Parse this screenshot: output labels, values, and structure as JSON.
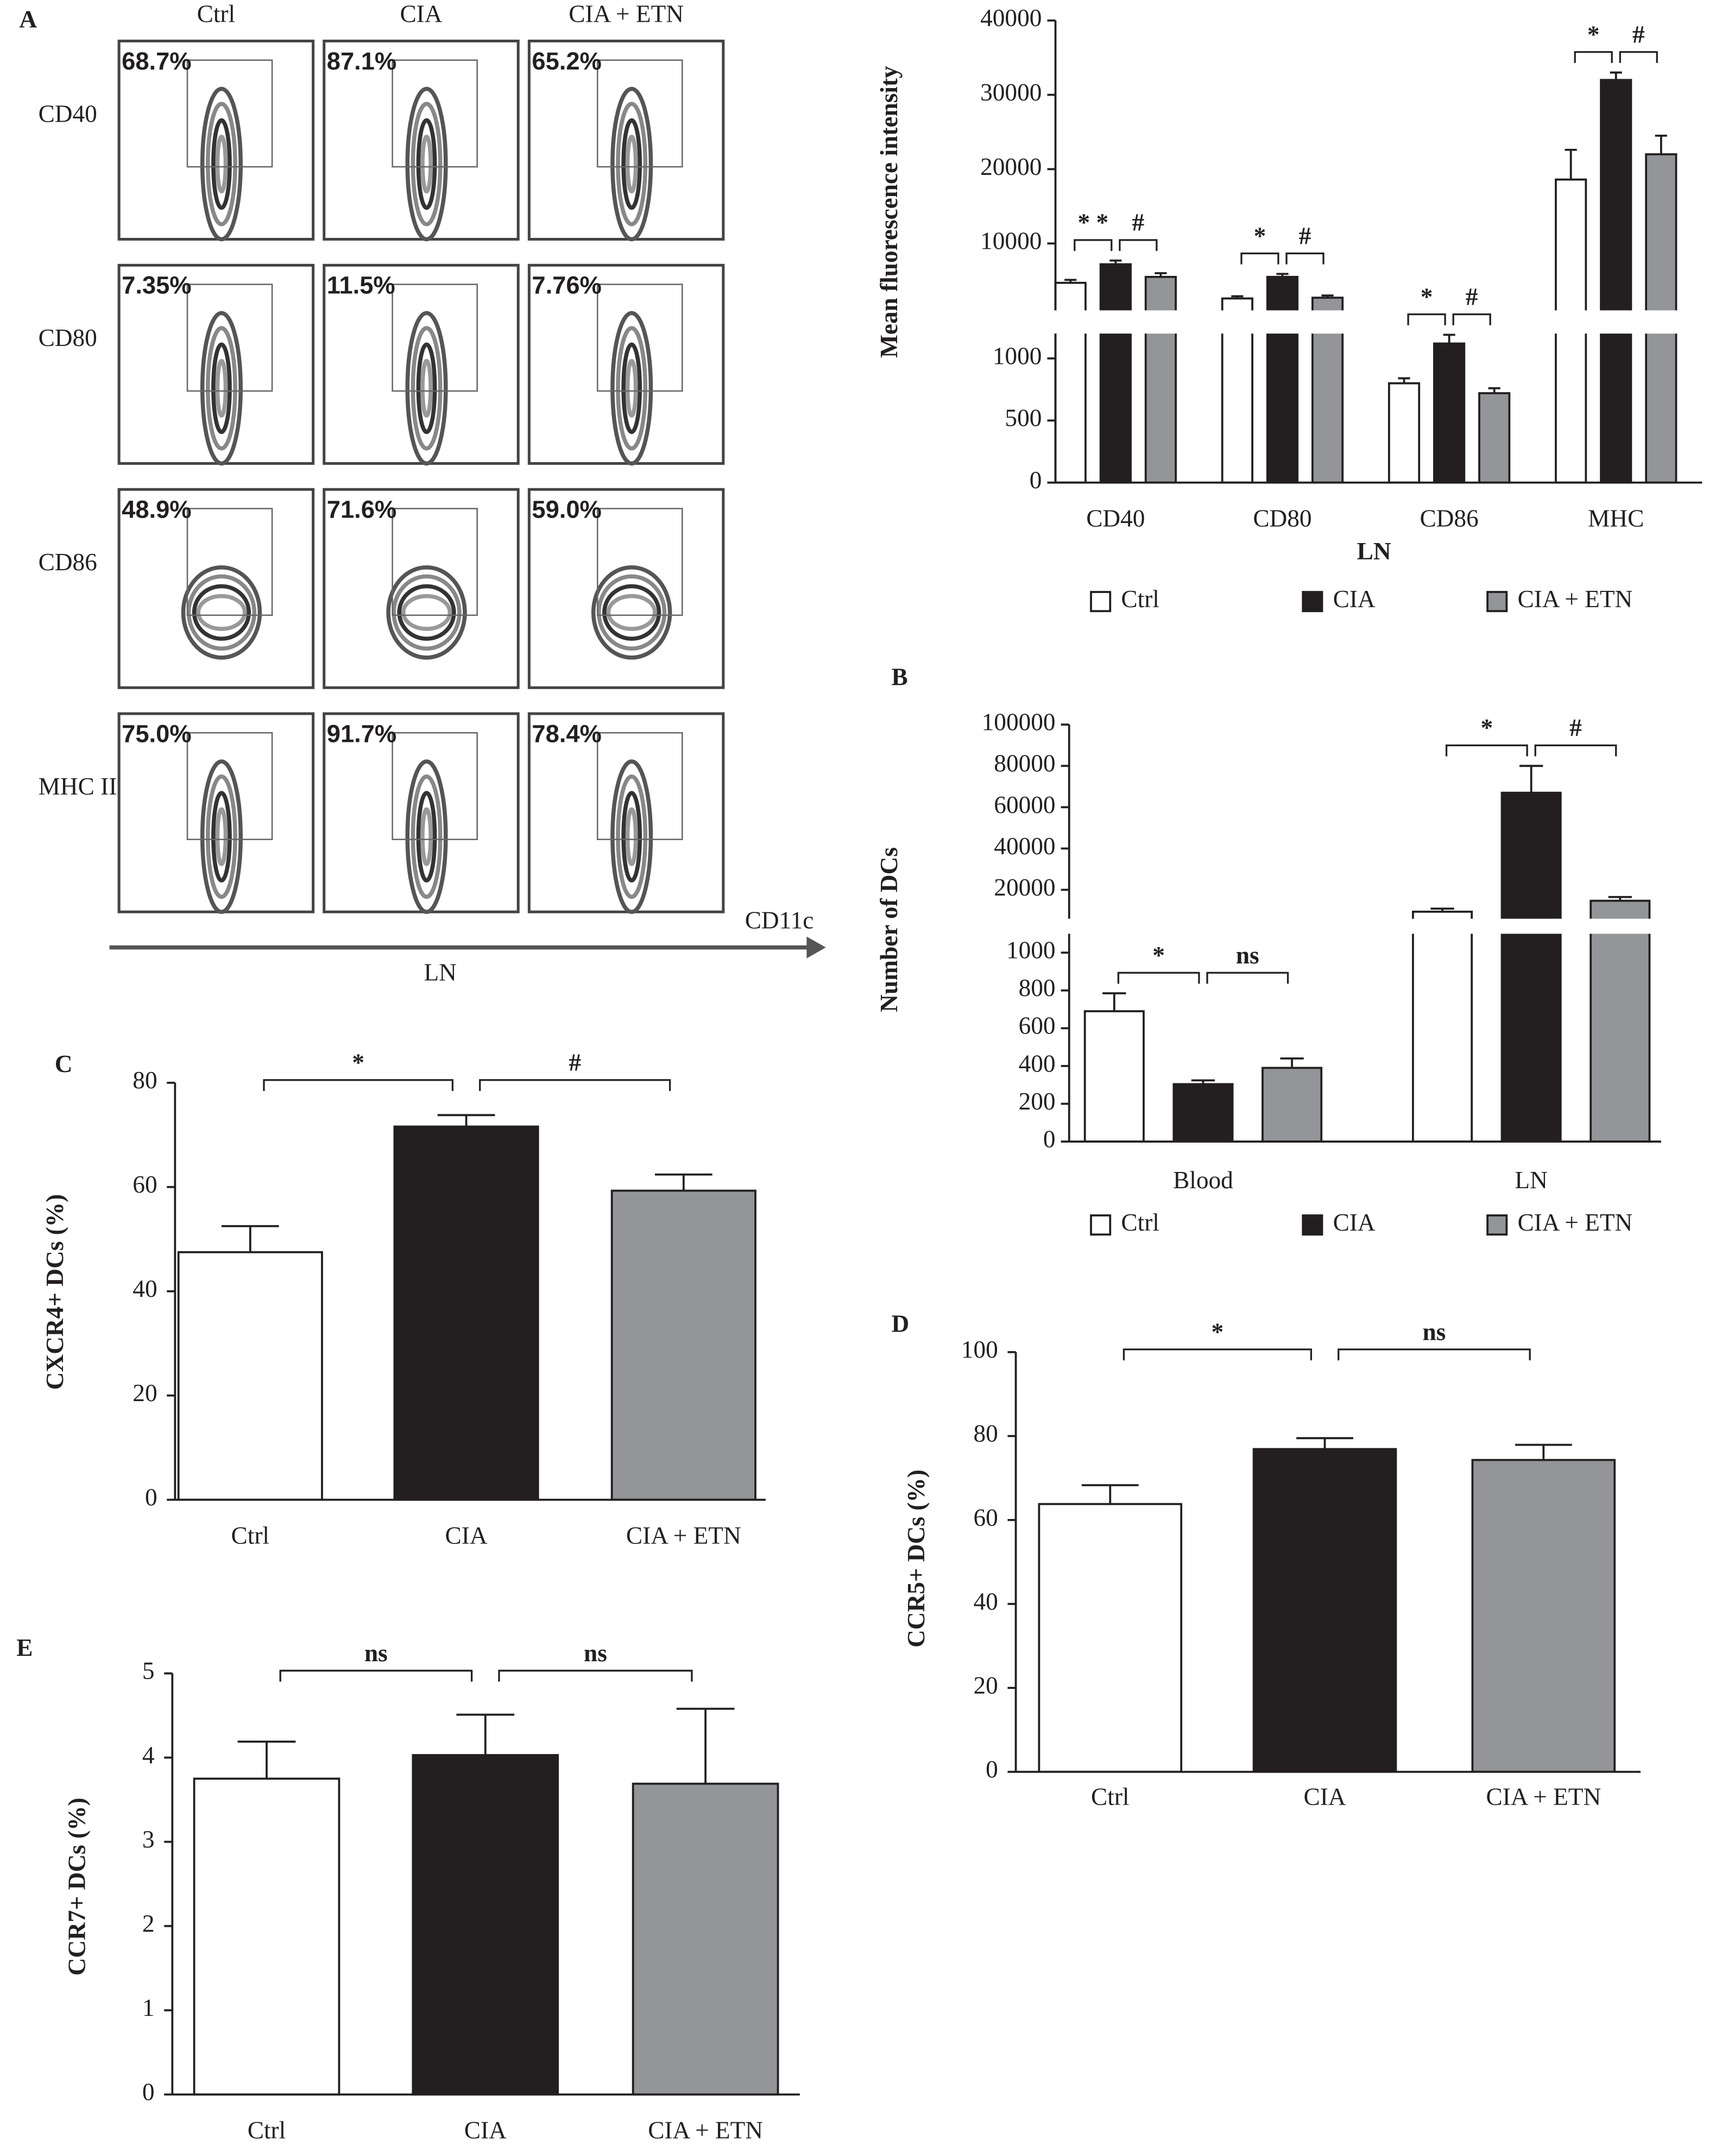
{
  "chart_data": [
    {
      "type": "flow-cytometry",
      "panel": "A",
      "columns": [
        "Ctrl",
        "CIA",
        "CIA + ETN"
      ],
      "rows": [
        "CD40",
        "CD80",
        "CD86",
        "MHC II"
      ],
      "values": [
        [
          68.7,
          87.1,
          65.2
        ],
        [
          7.35,
          11.5,
          7.76
        ],
        [
          48.9,
          71.6,
          59.0
        ],
        [
          75.0,
          91.7,
          78.4
        ]
      ],
      "value_labels": [
        [
          "68.7%",
          "87.1%",
          "65.2%"
        ],
        [
          "7.35%",
          "11.5%",
          "7.76%"
        ],
        [
          "48.9%",
          "71.6%",
          "59.0%"
        ],
        [
          "75.0%",
          "91.7%",
          "78.4%"
        ]
      ],
      "xlabel": "CD11c",
      "sublabel": "LN"
    },
    {
      "type": "bar",
      "ylabel": "Mean fluorescence intensity",
      "xlabel": "LN",
      "categories": [
        "CD40",
        "CD80",
        "CD86",
        "MHC"
      ],
      "series": [
        {
          "name": "Ctrl",
          "color": "#ffffff",
          "values": [
            4700,
            2600,
            800,
            18600
          ],
          "errors": [
            400,
            300,
            40,
            4000
          ]
        },
        {
          "name": "CIA",
          "color": "#231f20",
          "values": [
            7200,
            5500,
            1120,
            32000
          ],
          "errors": [
            500,
            400,
            70,
            1000
          ]
        },
        {
          "name": "CIA + ETN",
          "color": "#939598",
          "values": [
            5500,
            2700,
            720,
            22000
          ],
          "errors": [
            500,
            300,
            40,
            2500
          ]
        }
      ],
      "axis_segments": [
        {
          "ylim": [
            0,
            1200
          ],
          "yticks": [
            0,
            500,
            1000
          ]
        },
        {
          "ylim": [
            1000,
            40000
          ],
          "yticks": [
            10000,
            20000,
            30000,
            40000
          ]
        }
      ],
      "significance": [
        [
          "* *",
          "#"
        ],
        [
          "*",
          "#"
        ],
        [
          "*",
          "#"
        ],
        [
          "*",
          "#"
        ]
      ],
      "legend": "bottom"
    },
    {
      "type": "bar",
      "panel": "B",
      "ylabel": "Number of DCs",
      "categories": [
        "Blood",
        "LN"
      ],
      "series": [
        {
          "name": "Ctrl",
          "color": "#ffffff",
          "values": [
            690,
            9400
          ],
          "errors": [
            95,
            1500
          ]
        },
        {
          "name": "CIA",
          "color": "#231f20",
          "values": [
            304,
            67000
          ],
          "errors": [
            20,
            13000
          ]
        },
        {
          "name": "CIA + ETN",
          "color": "#939598",
          "values": [
            390,
            14700
          ],
          "errors": [
            50,
            1800
          ]
        }
      ],
      "axis_segments": [
        {
          "ylim": [
            0,
            1100
          ],
          "yticks": [
            0,
            200,
            400,
            600,
            800,
            1000
          ]
        },
        {
          "ylim": [
            6000,
            100000
          ],
          "yticks": [
            20000,
            40000,
            60000,
            80000,
            100000
          ]
        }
      ],
      "significance": [
        [
          "*",
          "ns"
        ],
        [
          "*",
          "#"
        ]
      ],
      "legend": "bottom"
    },
    {
      "type": "bar",
      "panel": "C",
      "ylabel": "CXCR4+ DCs (%)",
      "categories": [
        "Ctrl",
        "CIA",
        "CIA + ETN"
      ],
      "values": [
        47.5,
        71.6,
        59.3
      ],
      "errors": [
        5.0,
        2.2,
        3.1
      ],
      "colors": [
        "#ffffff",
        "#231f20",
        "#939598"
      ],
      "ylim": [
        0,
        80
      ],
      "yticks": [
        0,
        20,
        40,
        60,
        80
      ],
      "significance": [
        "*",
        "#"
      ]
    },
    {
      "type": "bar",
      "panel": "D",
      "ylabel": "CCR5+ DCs (%)",
      "categories": [
        "Ctrl",
        "CIA",
        "CIA + ETN"
      ],
      "values": [
        63.8,
        76.9,
        74.3
      ],
      "errors": [
        4.5,
        2.6,
        3.6
      ],
      "colors": [
        "#ffffff",
        "#231f20",
        "#939598"
      ],
      "ylim": [
        0,
        100
      ],
      "yticks": [
        0,
        20,
        40,
        60,
        80,
        100
      ],
      "significance": [
        "*",
        "ns"
      ]
    },
    {
      "type": "bar",
      "panel": "E",
      "ylabel": "CCR7+ DCs (%)",
      "categories": [
        "Ctrl",
        "CIA",
        "CIA + ETN"
      ],
      "values": [
        3.75,
        4.03,
        3.69
      ],
      "errors": [
        0.44,
        0.48,
        0.89
      ],
      "colors": [
        "#ffffff",
        "#231f20",
        "#939598"
      ],
      "ylim": [
        0,
        5
      ],
      "yticks": [
        0,
        1,
        2,
        3,
        4,
        5
      ],
      "significance": [
        "ns",
        "ns"
      ]
    }
  ]
}
